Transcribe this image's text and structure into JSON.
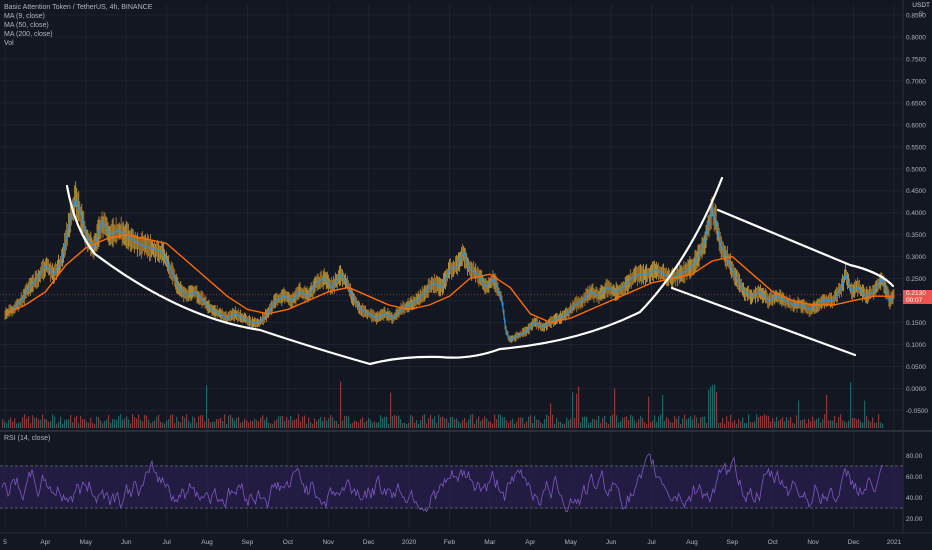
{
  "legend": {
    "title": "Basic Attention Token / TetherUS, 4h, BINANCE",
    "ma9": "MA (9, close)",
    "ma50": "MA (50, close)",
    "ma200": "MA (200, close)",
    "vol": "Vol",
    "rsi": "RSI (14, close)"
  },
  "currency": "USDT",
  "price_tag": {
    "price": "0.2130",
    "countdown": "00:07"
  },
  "colors": {
    "background": "#131722",
    "ma9": "#2196f3",
    "ma50": "#ff6d00",
    "ma200": "#2e7d32",
    "candles": "#ffcc40",
    "rsi": "#7e57c2",
    "rsi_band": "#2a1f4d",
    "drawing": "#ffffff",
    "price_tag": "#ef5350"
  },
  "chart_data": [
    {
      "type": "line",
      "title": "Basic Attention Token / TetherUS, 4h, BINANCE",
      "x_ticks": [
        "5",
        "Apr",
        "May",
        "Jun",
        "Jul",
        "Aug",
        "Sep",
        "Oct",
        "Nov",
        "Dec",
        "2020",
        "Feb",
        "Mar",
        "Apr",
        "May",
        "Jun",
        "Jul",
        "Aug",
        "Sep",
        "Oct",
        "Nov",
        "Dec",
        "2021"
      ],
      "y_ticks": [
        "0.8500",
        "0.8000",
        "0.7500",
        "0.7000",
        "0.6500",
        "0.6000",
        "0.5500",
        "0.5000",
        "0.4500",
        "0.4000",
        "0.3500",
        "0.3000",
        "0.2500",
        "0.2000",
        "0.1500",
        "0.1000",
        "0.0500",
        "0.0000",
        "-0.0500"
      ],
      "ylim": [
        -0.09,
        0.875
      ],
      "xlim": [
        0,
        22.1
      ],
      "last_price": 0.213,
      "price_series": [
        [
          0.0,
          0.17
        ],
        [
          0.2,
          0.18
        ],
        [
          0.4,
          0.2
        ],
        [
          0.6,
          0.23
        ],
        [
          0.8,
          0.25
        ],
        [
          1.0,
          0.28
        ],
        [
          1.2,
          0.26
        ],
        [
          1.4,
          0.29
        ],
        [
          1.6,
          0.38
        ],
        [
          1.75,
          0.43
        ],
        [
          1.9,
          0.39
        ],
        [
          2.0,
          0.35
        ],
        [
          2.2,
          0.32
        ],
        [
          2.4,
          0.38
        ],
        [
          2.6,
          0.35
        ],
        [
          2.8,
          0.36
        ],
        [
          3.0,
          0.35
        ],
        [
          3.3,
          0.33
        ],
        [
          3.6,
          0.32
        ],
        [
          3.9,
          0.31
        ],
        [
          4.1,
          0.27
        ],
        [
          4.3,
          0.23
        ],
        [
          4.5,
          0.21
        ],
        [
          4.7,
          0.22
        ],
        [
          4.9,
          0.2
        ],
        [
          5.1,
          0.18
        ],
        [
          5.3,
          0.17
        ],
        [
          5.5,
          0.16
        ],
        [
          5.7,
          0.17
        ],
        [
          5.9,
          0.16
        ],
        [
          6.1,
          0.15
        ],
        [
          6.3,
          0.15
        ],
        [
          6.5,
          0.17
        ],
        [
          6.7,
          0.2
        ],
        [
          6.9,
          0.21
        ],
        [
          7.1,
          0.2
        ],
        [
          7.3,
          0.22
        ],
        [
          7.5,
          0.21
        ],
        [
          7.7,
          0.24
        ],
        [
          7.9,
          0.25
        ],
        [
          8.1,
          0.23
        ],
        [
          8.3,
          0.26
        ],
        [
          8.45,
          0.24
        ],
        [
          8.6,
          0.21
        ],
        [
          8.8,
          0.18
        ],
        [
          9.0,
          0.17
        ],
        [
          9.2,
          0.16
        ],
        [
          9.4,
          0.17
        ],
        [
          9.6,
          0.16
        ],
        [
          9.8,
          0.18
        ],
        [
          10.0,
          0.19
        ],
        [
          10.2,
          0.2
        ],
        [
          10.4,
          0.22
        ],
        [
          10.6,
          0.24
        ],
        [
          10.8,
          0.23
        ],
        [
          11.0,
          0.27
        ],
        [
          11.2,
          0.28
        ],
        [
          11.35,
          0.31
        ],
        [
          11.5,
          0.27
        ],
        [
          11.7,
          0.26
        ],
        [
          11.9,
          0.23
        ],
        [
          12.1,
          0.25
        ],
        [
          12.3,
          0.2
        ],
        [
          12.4,
          0.13
        ],
        [
          12.5,
          0.11
        ],
        [
          12.7,
          0.12
        ],
        [
          12.9,
          0.13
        ],
        [
          13.1,
          0.15
        ],
        [
          13.3,
          0.14
        ],
        [
          13.5,
          0.15
        ],
        [
          13.7,
          0.16
        ],
        [
          13.9,
          0.17
        ],
        [
          14.1,
          0.19
        ],
        [
          14.3,
          0.2
        ],
        [
          14.5,
          0.22
        ],
        [
          14.7,
          0.21
        ],
        [
          14.9,
          0.23
        ],
        [
          15.1,
          0.22
        ],
        [
          15.3,
          0.23
        ],
        [
          15.5,
          0.25
        ],
        [
          15.7,
          0.26
        ],
        [
          15.9,
          0.26
        ],
        [
          16.1,
          0.27
        ],
        [
          16.3,
          0.26
        ],
        [
          16.5,
          0.25
        ],
        [
          16.7,
          0.26
        ],
        [
          16.9,
          0.27
        ],
        [
          17.1,
          0.29
        ],
        [
          17.3,
          0.33
        ],
        [
          17.5,
          0.41
        ],
        [
          17.6,
          0.38
        ],
        [
          17.7,
          0.33
        ],
        [
          17.9,
          0.29
        ],
        [
          18.1,
          0.25
        ],
        [
          18.3,
          0.22
        ],
        [
          18.5,
          0.21
        ],
        [
          18.7,
          0.22
        ],
        [
          18.9,
          0.2
        ],
        [
          19.1,
          0.21
        ],
        [
          19.3,
          0.2
        ],
        [
          19.5,
          0.19
        ],
        [
          19.7,
          0.19
        ],
        [
          19.9,
          0.18
        ],
        [
          20.1,
          0.19
        ],
        [
          20.3,
          0.2
        ],
        [
          20.5,
          0.2
        ],
        [
          20.7,
          0.23
        ],
        [
          20.8,
          0.26
        ],
        [
          20.95,
          0.22
        ],
        [
          21.1,
          0.23
        ],
        [
          21.3,
          0.21
        ],
        [
          21.5,
          0.22
        ],
        [
          21.7,
          0.25
        ],
        [
          21.9,
          0.2
        ],
        [
          22.0,
          0.213
        ]
      ],
      "ma50_series": [
        [
          0.0,
          0.17
        ],
        [
          0.5,
          0.19
        ],
        [
          1.0,
          0.22
        ],
        [
          1.5,
          0.28
        ],
        [
          2.0,
          0.32
        ],
        [
          2.5,
          0.34
        ],
        [
          3.0,
          0.35
        ],
        [
          3.5,
          0.34
        ],
        [
          4.0,
          0.33
        ],
        [
          4.5,
          0.29
        ],
        [
          5.0,
          0.25
        ],
        [
          5.5,
          0.21
        ],
        [
          6.0,
          0.18
        ],
        [
          6.5,
          0.17
        ],
        [
          7.0,
          0.18
        ],
        [
          7.5,
          0.2
        ],
        [
          8.0,
          0.22
        ],
        [
          8.5,
          0.23
        ],
        [
          9.0,
          0.21
        ],
        [
          9.5,
          0.19
        ],
        [
          10.0,
          0.18
        ],
        [
          10.5,
          0.19
        ],
        [
          11.0,
          0.21
        ],
        [
          11.5,
          0.25
        ],
        [
          12.0,
          0.26
        ],
        [
          12.5,
          0.23
        ],
        [
          13.0,
          0.17
        ],
        [
          13.5,
          0.15
        ],
        [
          14.0,
          0.16
        ],
        [
          14.5,
          0.18
        ],
        [
          15.0,
          0.2
        ],
        [
          15.5,
          0.22
        ],
        [
          16.0,
          0.24
        ],
        [
          16.5,
          0.25
        ],
        [
          17.0,
          0.26
        ],
        [
          17.5,
          0.29
        ],
        [
          18.0,
          0.3
        ],
        [
          18.5,
          0.26
        ],
        [
          19.0,
          0.22
        ],
        [
          19.5,
          0.2
        ],
        [
          20.0,
          0.19
        ],
        [
          20.5,
          0.19
        ],
        [
          21.0,
          0.2
        ],
        [
          21.5,
          0.21
        ],
        [
          22.0,
          0.21
        ]
      ]
    },
    {
      "type": "line",
      "title": "RSI (14, close)",
      "y_ticks": [
        "80.00",
        "60.00",
        "40.00",
        "20.00"
      ],
      "ylim": [
        12,
        88
      ],
      "bands": [
        30,
        70
      ]
    }
  ]
}
